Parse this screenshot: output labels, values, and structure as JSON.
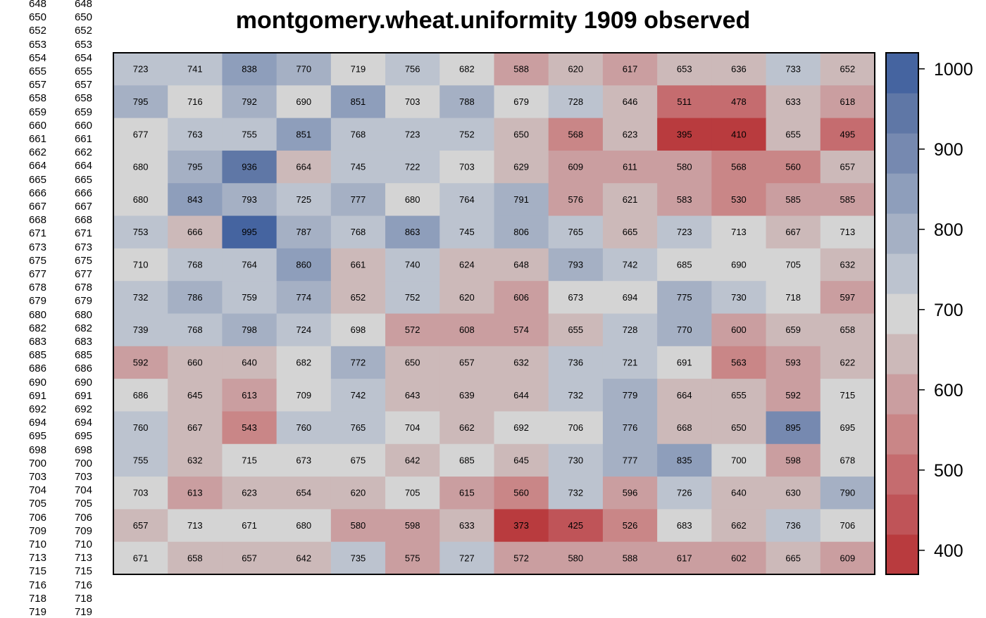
{
  "chart_data": {
    "type": "heatmap",
    "title": "montgomery.wheat.uniformity 1909 observed",
    "rows": [
      [
        723,
        741,
        838,
        770,
        719,
        756,
        682,
        588,
        620,
        617,
        653,
        636,
        733,
        652
      ],
      [
        795,
        716,
        792,
        690,
        851,
        703,
        788,
        679,
        728,
        646,
        511,
        478,
        633,
        618
      ],
      [
        677,
        763,
        755,
        851,
        768,
        723,
        752,
        650,
        568,
        623,
        395,
        410,
        655,
        495
      ],
      [
        680,
        795,
        936,
        664,
        745,
        722,
        703,
        629,
        609,
        611,
        580,
        568,
        560,
        657
      ],
      [
        680,
        843,
        793,
        725,
        777,
        680,
        764,
        791,
        576,
        621,
        583,
        530,
        585,
        585
      ],
      [
        753,
        666,
        995,
        787,
        768,
        863,
        745,
        806,
        765,
        665,
        723,
        713,
        667,
        713
      ],
      [
        710,
        768,
        764,
        860,
        661,
        740,
        624,
        648,
        793,
        742,
        685,
        690,
        705,
        632
      ],
      [
        732,
        786,
        759,
        774,
        652,
        752,
        620,
        606,
        673,
        694,
        775,
        730,
        718,
        597
      ],
      [
        739,
        768,
        798,
        724,
        698,
        572,
        608,
        574,
        655,
        728,
        770,
        600,
        659,
        658
      ],
      [
        592,
        660,
        640,
        682,
        772,
        650,
        657,
        632,
        736,
        721,
        691,
        563,
        593,
        622
      ],
      [
        686,
        645,
        613,
        709,
        742,
        643,
        639,
        644,
        732,
        779,
        664,
        655,
        592,
        715
      ],
      [
        760,
        667,
        543,
        760,
        765,
        704,
        662,
        692,
        706,
        776,
        668,
        650,
        895,
        695
      ],
      [
        755,
        632,
        715,
        673,
        675,
        642,
        685,
        645,
        730,
        777,
        835,
        700,
        598,
        678
      ],
      [
        703,
        613,
        623,
        654,
        620,
        705,
        615,
        560,
        732,
        596,
        726,
        640,
        630,
        790
      ],
      [
        657,
        713,
        671,
        680,
        580,
        598,
        633,
        373,
        425,
        526,
        683,
        662,
        736,
        706
      ],
      [
        671,
        658,
        657,
        642,
        735,
        575,
        727,
        572,
        580,
        588,
        617,
        602,
        665,
        609
      ]
    ],
    "color_breaks": [
      370,
      420,
      470,
      520,
      570,
      620,
      670,
      720,
      770,
      820,
      870,
      920,
      970,
      1020
    ],
    "palette": [
      "#b93b3e",
      "#bf5458",
      "#c56c6f",
      "#c98687",
      "#ca9ea0",
      "#ccb9b9",
      "#d4d4d4",
      "#bcc3cf",
      "#a5b0c4",
      "#8e9ebb",
      "#7689b0",
      "#5f77a6",
      "#4564a0",
      "#2f54a0"
    ],
    "colorbar_ticks": [
      400,
      500,
      600,
      700,
      800,
      900,
      1000
    ],
    "left_labels": [
      "648",
      "650",
      "652",
      "653",
      "654",
      "655",
      "657",
      "658",
      "659",
      "660",
      "661",
      "662",
      "664",
      "665",
      "666",
      "667",
      "668",
      "671",
      "673",
      "675",
      "677",
      "678",
      "679",
      "680",
      "682",
      "683",
      "685",
      "686",
      "690",
      "691",
      "692",
      "694",
      "695",
      "698",
      "700",
      "703",
      "704",
      "705",
      "706",
      "709",
      "710",
      "713",
      "715",
      "716",
      "718",
      "719"
    ]
  }
}
